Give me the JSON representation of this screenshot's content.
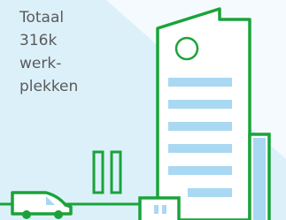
{
  "label": {
    "lines": [
      "Totaal",
      "316k",
      "werk-",
      "plekken"
    ]
  }
}
